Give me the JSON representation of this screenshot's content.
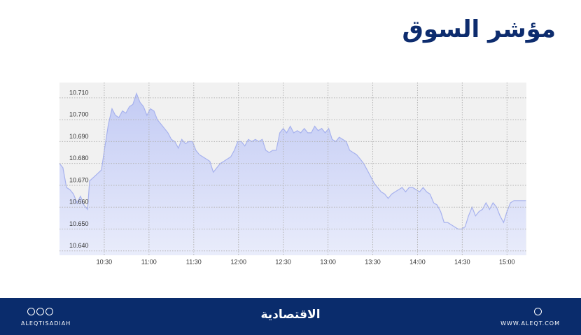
{
  "chart_data": {
    "type": "area",
    "title": "مؤشر السوق",
    "x": [
      600,
      602.3,
      604.7,
      607.0,
      609.4,
      611.7,
      614.1,
      616.4,
      618.8,
      620.2,
      623.4,
      628.1,
      630.5,
      632.8,
      635.2,
      637.5,
      639.8,
      642.2,
      644.5,
      646.9,
      649.2,
      651.6,
      653.9,
      656.3,
      658.6,
      660.9,
      663.3,
      665.6,
      668.0,
      672.7,
      675.0,
      677.3,
      679.7,
      682.0,
      684.4,
      686.7,
      689.1,
      691.4,
      693.8,
      696.1,
      698.4,
      700.8,
      703.1,
      705.5,
      707.8,
      710.2,
      712.5,
      714.8,
      717.2,
      719.5,
      721.9,
      724.2,
      726.6,
      728.9,
      731.3,
      733.6,
      735.9,
      738.3,
      740.6,
      743.0,
      745.3,
      747.7,
      750.0,
      752.3,
      754.7,
      757.0,
      759.4,
      761.7,
      764.1,
      766.4,
      768.8,
      771.1,
      773.4,
      775.8,
      778.1,
      780.5,
      782.8,
      785.2,
      787.5,
      789.8,
      792.2,
      794.5,
      796.9,
      799.2,
      801.6,
      803.9,
      806.3,
      808.6,
      810.9,
      813.3,
      815.6,
      818.0,
      820.3,
      822.7,
      825.0,
      827.3,
      829.7,
      832.0,
      834.4,
      836.7,
      839.1,
      841.4,
      843.8,
      846.1,
      848.4,
      850.8,
      853.1,
      855.5,
      857.8,
      860.2,
      862.5,
      864.8,
      867.2,
      869.5,
      871.9,
      874.2,
      876.6,
      878.9,
      881.3,
      883.6,
      885.9,
      888.3,
      890.6,
      893.0,
      895.3,
      897.7,
      900.0,
      902.3,
      904.7,
      912.7
    ],
    "values": [
      10.68,
      10.678,
      10.669,
      10.668,
      10.666,
      10.662,
      10.665,
      10.661,
      10.659,
      10.672,
      10.674,
      10.677,
      10.688,
      10.698,
      10.705,
      10.702,
      10.701,
      10.704,
      10.703,
      10.706,
      10.707,
      10.712,
      10.708,
      10.706,
      10.702,
      10.705,
      10.704,
      10.7,
      10.698,
      10.694,
      10.691,
      10.69,
      10.687,
      10.691,
      10.689,
      10.69,
      10.69,
      10.686,
      10.684,
      10.683,
      10.682,
      10.681,
      10.676,
      10.678,
      10.68,
      10.681,
      10.682,
      10.683,
      10.686,
      10.69,
      10.69,
      10.688,
      10.691,
      10.69,
      10.691,
      10.69,
      10.691,
      10.686,
      10.685,
      10.686,
      10.686,
      10.694,
      10.696,
      10.694,
      10.697,
      10.694,
      10.695,
      10.694,
      10.696,
      10.694,
      10.694,
      10.697,
      10.695,
      10.696,
      10.694,
      10.696,
      10.691,
      10.69,
      10.692,
      10.691,
      10.69,
      10.686,
      10.685,
      10.684,
      10.682,
      10.68,
      10.677,
      10.674,
      10.671,
      10.669,
      10.667,
      10.666,
      10.664,
      10.666,
      10.667,
      10.668,
      10.669,
      10.667,
      10.669,
      10.669,
      10.668,
      10.667,
      10.669,
      10.667,
      10.666,
      10.662,
      10.661,
      10.658,
      10.653,
      10.653,
      10.652,
      10.651,
      10.65,
      10.65,
      10.651,
      10.656,
      10.66,
      10.656,
      10.658,
      10.659,
      10.662,
      10.659,
      10.662,
      10.66,
      10.656,
      10.653,
      10.658,
      10.662,
      10.663,
      10.663
    ],
    "color": "#a7b2ee",
    "xlim": [
      600,
      913
    ],
    "xticks": [
      {
        "value": 630,
        "label": "10:30"
      },
      {
        "value": 660,
        "label": "11:00"
      },
      {
        "value": 690,
        "label": "11:30"
      },
      {
        "value": 720,
        "label": "12:00"
      },
      {
        "value": 750,
        "label": "12:30"
      },
      {
        "value": 780,
        "label": "13:00"
      },
      {
        "value": 810,
        "label": "13:30"
      },
      {
        "value": 840,
        "label": "14:00"
      },
      {
        "value": 870,
        "label": "14:30"
      },
      {
        "value": 900,
        "label": "15:00"
      }
    ],
    "ylim": [
      10.638,
      10.717
    ],
    "yticks": [
      {
        "value": 10.64,
        "label": "10.640"
      },
      {
        "value": 10.65,
        "label": "10.650"
      },
      {
        "value": 10.66,
        "label": "10.660"
      },
      {
        "value": 10.67,
        "label": "10.670"
      },
      {
        "value": 10.68,
        "label": "10.680"
      },
      {
        "value": 10.69,
        "label": "10.690"
      },
      {
        "value": 10.7,
        "label": "10.700"
      },
      {
        "value": 10.71,
        "label": "10.710"
      }
    ],
    "grid": true
  },
  "footer": {
    "brand": "الاقتصادية",
    "handle": "ALEQTISADIAH",
    "website": "WWW.ALEQT.COM"
  }
}
